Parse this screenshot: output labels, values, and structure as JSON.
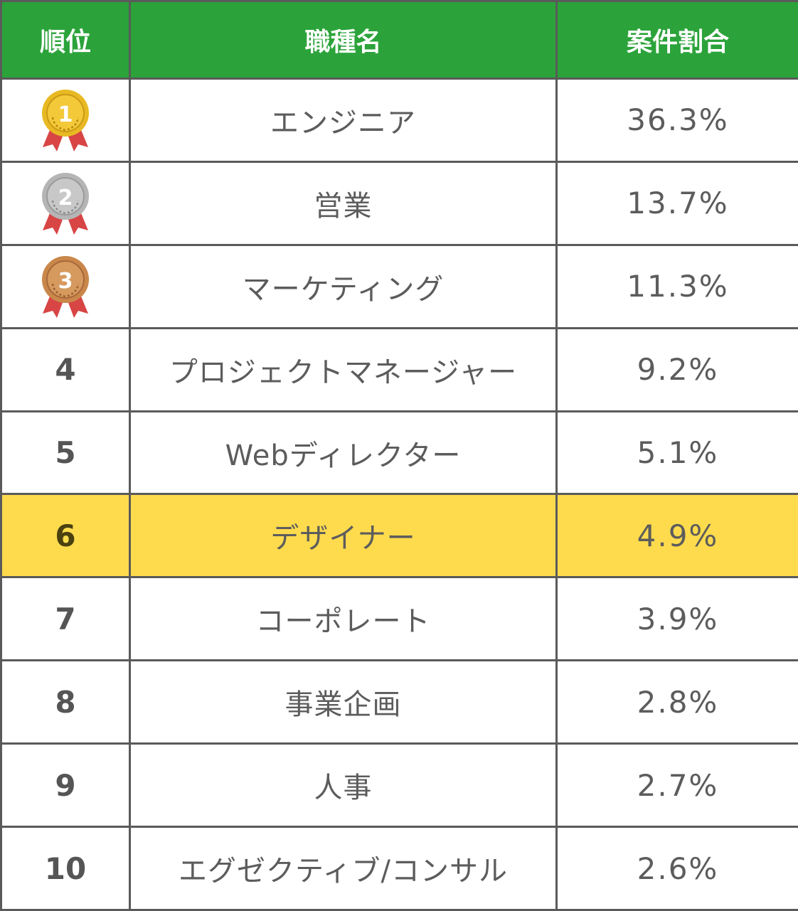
{
  "header": {
    "rank_label": "順位",
    "job_label": "職種名",
    "share_label": "案件割合"
  },
  "colors": {
    "header_bg": "#2ba33a",
    "highlight_bg": "#fedb4d",
    "gold": "#e8b923",
    "silver": "#b5b5b5",
    "bronze": "#c9874a",
    "ribbon": "#d84545"
  },
  "rows": [
    {
      "rank": "1",
      "medal": "gold-medal-icon",
      "job": "エンジニア",
      "share": "36.3%"
    },
    {
      "rank": "2",
      "medal": "silver-medal-icon",
      "job": "営業",
      "share": "13.7%"
    },
    {
      "rank": "3",
      "medal": "bronze-medal-icon",
      "job": "マーケティング",
      "share": "11.3%"
    },
    {
      "rank": "4",
      "job": "プロジェクトマネージャー",
      "share": "9.2%"
    },
    {
      "rank": "5",
      "job": "Webディレクター",
      "share": "5.1%"
    },
    {
      "rank": "6",
      "job": "デザイナー",
      "share": "4.9%",
      "highlight": true
    },
    {
      "rank": "7",
      "job": "コーポレート",
      "share": "3.9%"
    },
    {
      "rank": "8",
      "job": "事業企画",
      "share": "2.8%"
    },
    {
      "rank": "9",
      "job": "人事",
      "share": "2.7%"
    },
    {
      "rank": "10",
      "job": "エグゼクティブ/コンサル",
      "share": "2.6%"
    }
  ]
}
